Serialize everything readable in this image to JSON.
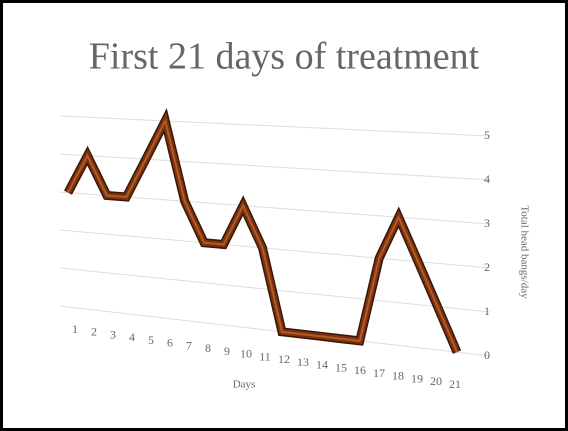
{
  "chart_data": {
    "type": "line",
    "title": "First 21 days of treatment",
    "x_label": "Days",
    "y_label": "Total head bangs/day",
    "categories": [
      "1",
      "2",
      "3",
      "4",
      "5",
      "6",
      "7",
      "8",
      "9",
      "10",
      "11",
      "12",
      "13",
      "14",
      "15",
      "16",
      "17",
      "18",
      "19",
      "20",
      "21"
    ],
    "series": [
      {
        "name": "Total head bangs/day",
        "color": "#7a3310",
        "values": [
          3,
          4,
          3,
          3,
          4,
          5,
          3,
          2,
          2,
          3,
          2,
          0,
          0,
          0,
          0,
          0,
          2,
          3,
          2,
          1,
          0
        ]
      }
    ],
    "ylim": [
      0,
      5
    ],
    "yticks": [
      0,
      1,
      2,
      3,
      4,
      5
    ],
    "grid": true
  }
}
